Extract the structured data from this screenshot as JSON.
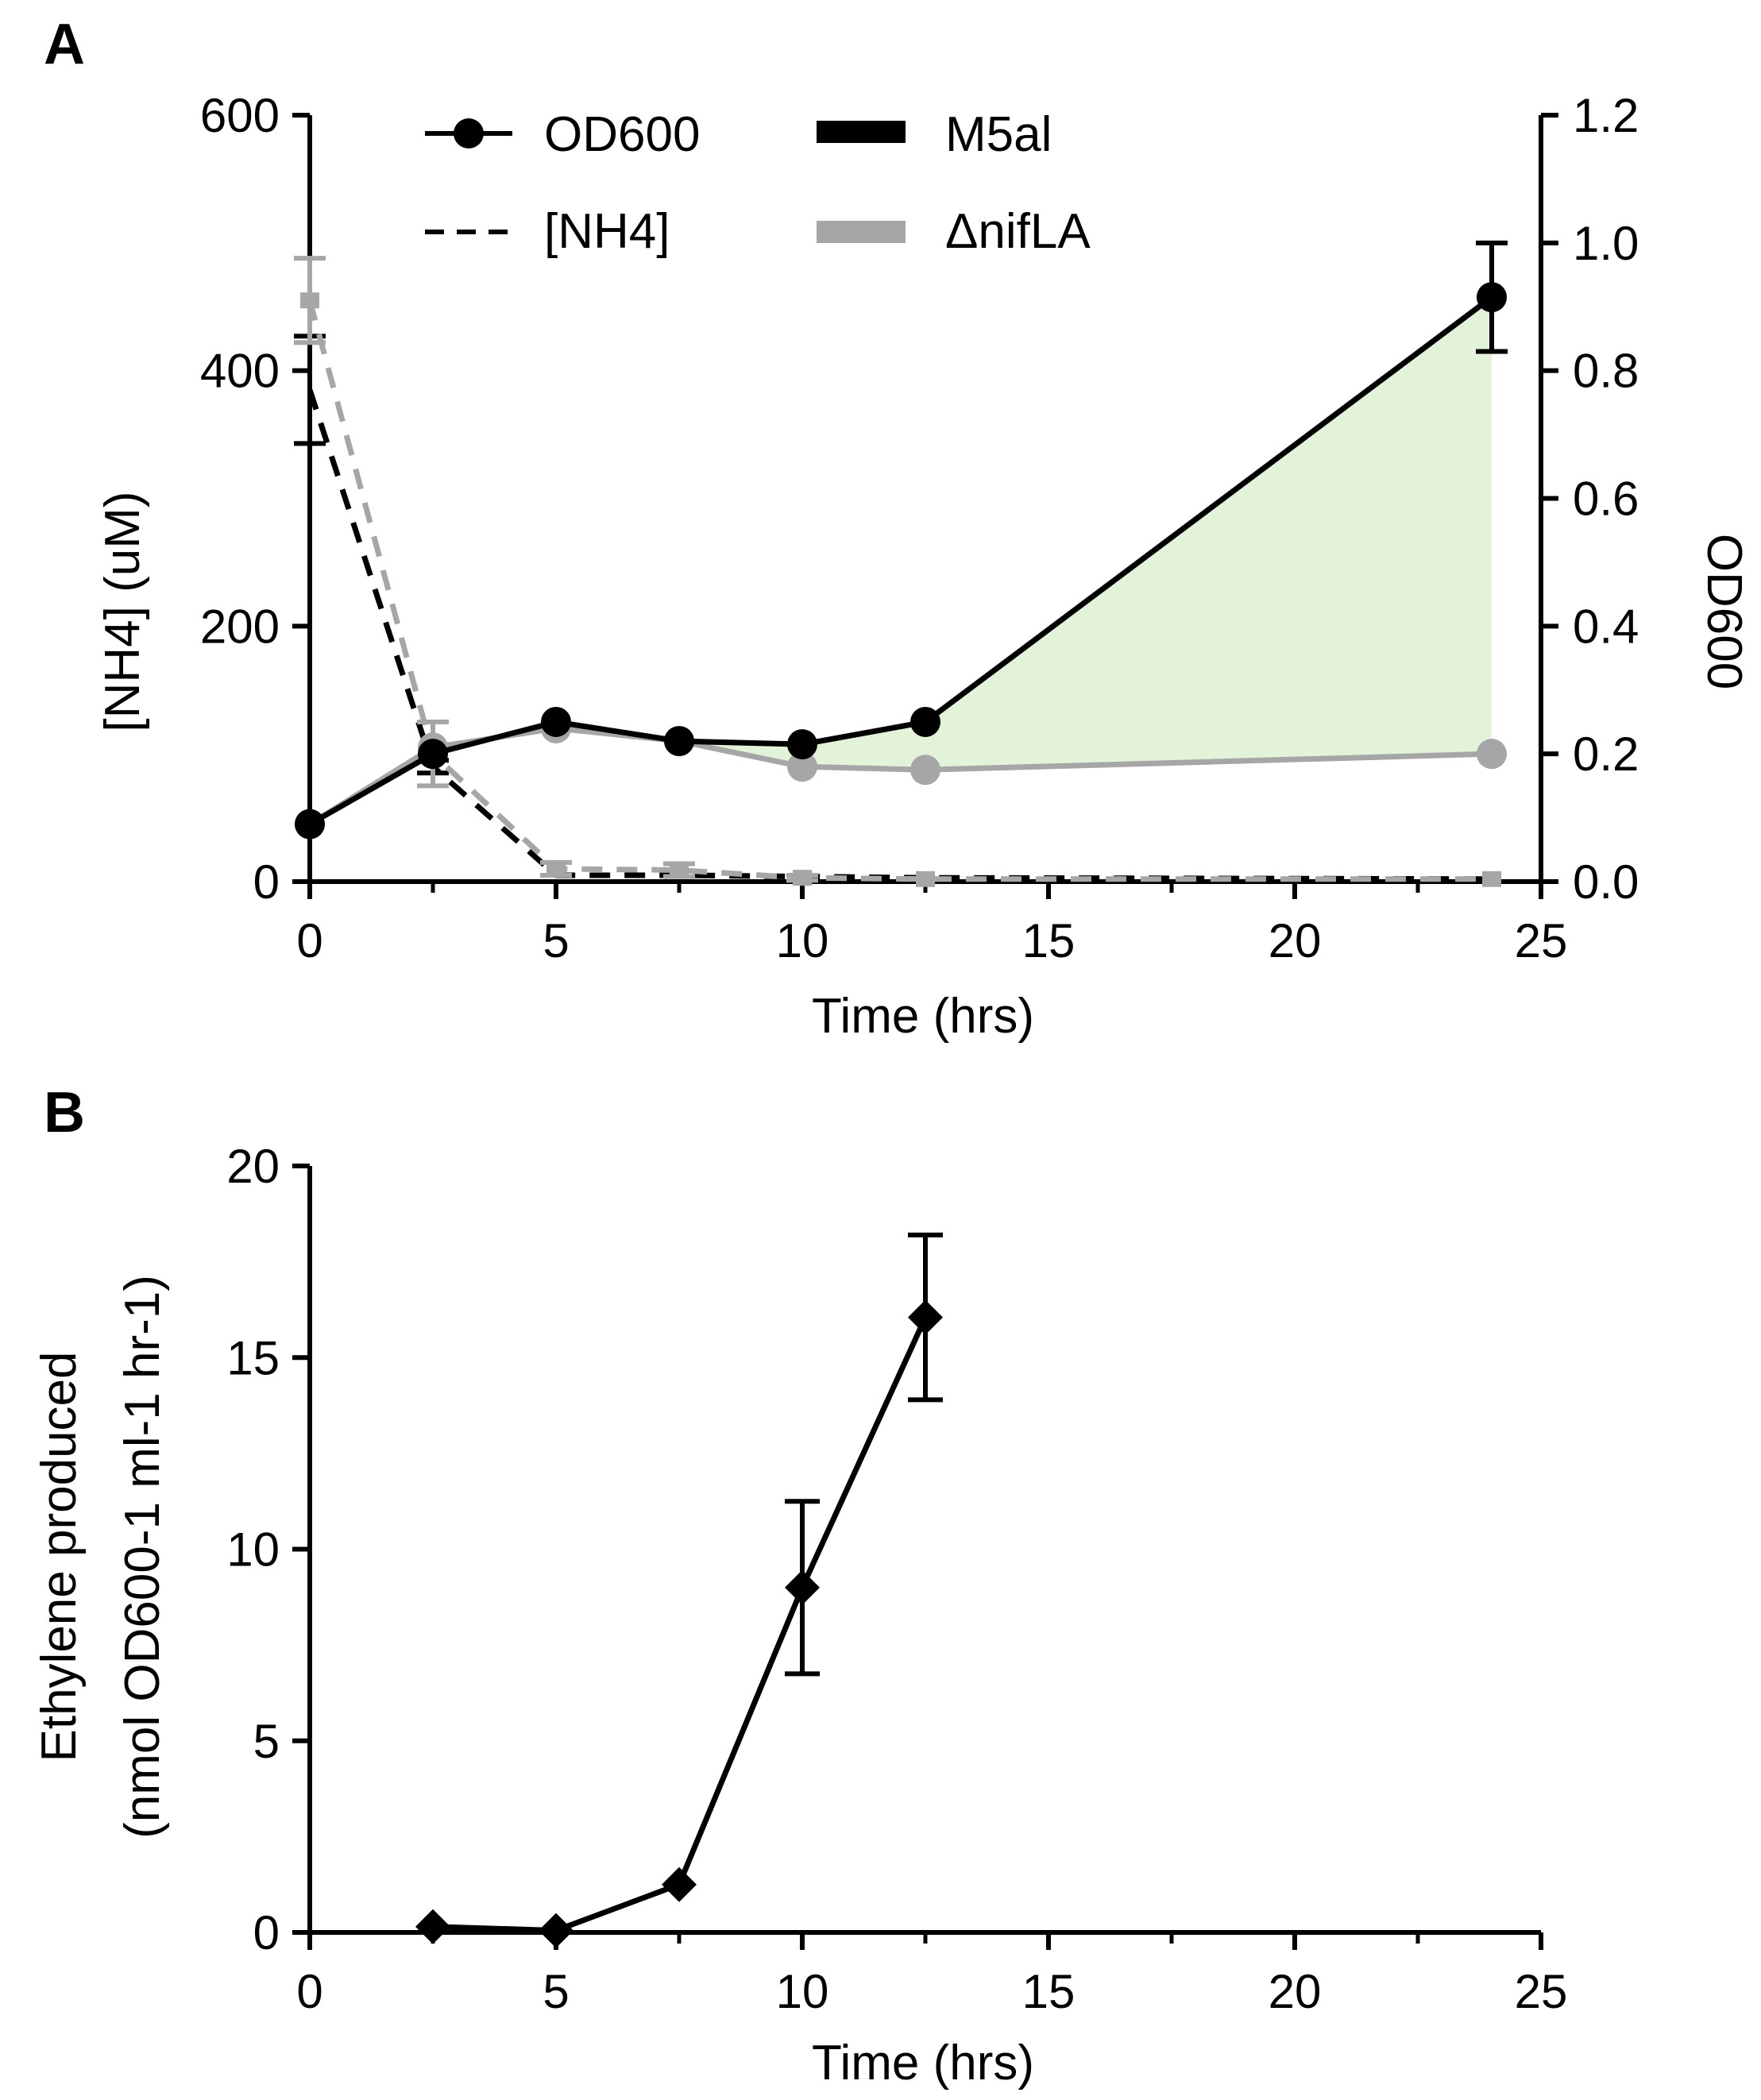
{
  "chart_data": [
    {
      "panel": "A",
      "type": "line",
      "x_label": "Time (hrs)",
      "xlim": [
        0,
        25
      ],
      "x_ticks": [
        0,
        5,
        10,
        15,
        20,
        25
      ],
      "y_left_label": "[NH4] (uM)",
      "y_left_lim": [
        0,
        600
      ],
      "y_left_ticks": [
        0,
        200,
        400,
        600
      ],
      "y_right_label": "OD600",
      "y_right_lim": [
        0,
        1.2
      ],
      "y_right_ticks": [
        "0.0",
        "0.2",
        "0.4",
        "0.6",
        "0.8",
        "1.0",
        "1.2"
      ],
      "legend": {
        "od": "OD600",
        "nh4": "[NH4]",
        "m5al": "M5al",
        "nifla": "ΔnifLA",
        "placement": "top-center"
      },
      "colors": {
        "m5al": "#000000",
        "nifla": "#a6a6a6",
        "fill": "#e2f3d9"
      },
      "series": [
        {
          "name": "M5al OD600",
          "axis": "right",
          "style": "solid-circle",
          "x": [
            0,
            2.5,
            5,
            7.5,
            10,
            12.5,
            24
          ],
          "y": [
            0.09,
            0.2,
            0.25,
            0.22,
            0.215,
            0.25,
            0.915
          ],
          "err": [
            0,
            0,
            0,
            0,
            0,
            0,
            0.085
          ]
        },
        {
          "name": "ΔnifLA OD600",
          "axis": "right",
          "style": "solid-circle",
          "x": [
            0,
            2.5,
            5,
            7.5,
            10,
            12.5,
            24
          ],
          "y": [
            0.09,
            0.21,
            0.24,
            0.22,
            0.18,
            0.175,
            0.2
          ],
          "err": [
            0,
            0,
            0,
            0,
            0,
            0,
            0
          ]
        },
        {
          "name": "M5al [NH4]",
          "axis": "left",
          "style": "dashed",
          "x": [
            0,
            2.5,
            5,
            7.5,
            10,
            12.5,
            24
          ],
          "y": [
            385,
            90,
            5,
            5,
            4,
            3,
            2
          ],
          "err": [
            42,
            5,
            0,
            0,
            0,
            0,
            0
          ]
        },
        {
          "name": "ΔnifLA [NH4]",
          "axis": "left",
          "style": "dashed",
          "x": [
            0,
            2.5,
            5,
            7.5,
            10,
            12.5,
            24
          ],
          "y": [
            455,
            100,
            10,
            9,
            3,
            2,
            2
          ],
          "err": [
            33,
            25,
            5,
            5,
            2,
            0,
            0
          ]
        }
      ]
    },
    {
      "panel": "B",
      "type": "line",
      "x_label": "Time (hrs)",
      "xlim": [
        0,
        25
      ],
      "x_ticks": [
        0,
        5,
        10,
        15,
        20,
        25
      ],
      "y_label_line1": "Ethylene produced",
      "y_label_line2": "(nmol OD600-1 ml-1 hr-1)",
      "ylim": [
        0,
        20
      ],
      "y_ticks": [
        0,
        5,
        10,
        15,
        20
      ],
      "series": [
        {
          "name": "Ethylene",
          "style": "solid-diamond",
          "x": [
            2.5,
            5,
            7.5,
            10,
            12.5
          ],
          "y": [
            0.15,
            0.05,
            1.25,
            9.0,
            16.05
          ],
          "err": [
            0,
            0,
            0,
            2.25,
            2.15
          ]
        }
      ]
    }
  ]
}
